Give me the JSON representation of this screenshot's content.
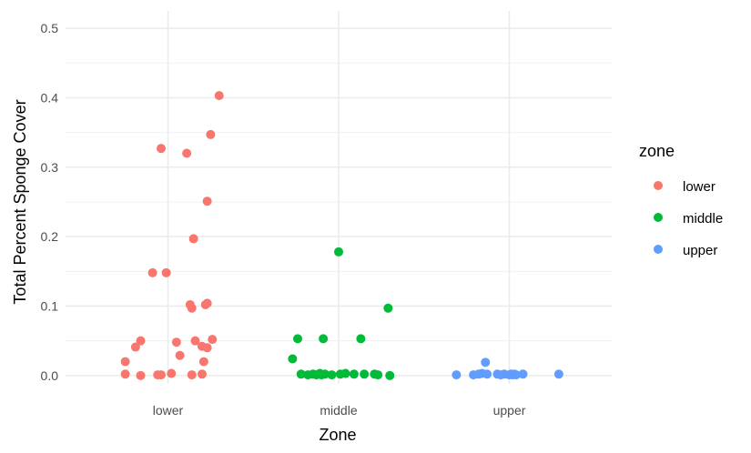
{
  "chart_data": {
    "type": "scatter",
    "xlabel": "Zone",
    "ylabel": "Total Percent Sponge Cover",
    "categories": [
      "lower",
      "middle",
      "upper"
    ],
    "y_ticks": [
      "0.0",
      "0.1",
      "0.2",
      "0.3",
      "0.4",
      "0.5"
    ],
    "ylim": [
      -0.012,
      0.525
    ],
    "grid": true,
    "legend": {
      "title": "zone",
      "position": "right",
      "entries": [
        "lower",
        "middle",
        "upper"
      ]
    },
    "colors": {
      "lower": "#F8766D",
      "middle": "#00BA38",
      "upper": "#619CFF"
    },
    "series": [
      {
        "name": "lower",
        "points": [
          {
            "x": 0.75,
            "y": 0.02
          },
          {
            "x": 0.75,
            "y": 0.002
          },
          {
            "x": 0.81,
            "y": 0.041
          },
          {
            "x": 0.84,
            "y": 0.05
          },
          {
            "x": 0.84,
            "y": 0.0
          },
          {
            "x": 0.91,
            "y": 0.148
          },
          {
            "x": 0.94,
            "y": 0.001
          },
          {
            "x": 0.96,
            "y": 0.327
          },
          {
            "x": 0.96,
            "y": 0.001
          },
          {
            "x": 0.99,
            "y": 0.148
          },
          {
            "x": 1.02,
            "y": 0.003
          },
          {
            "x": 1.05,
            "y": 0.048
          },
          {
            "x": 1.07,
            "y": 0.029
          },
          {
            "x": 1.11,
            "y": 0.32
          },
          {
            "x": 1.13,
            "y": 0.102
          },
          {
            "x": 1.14,
            "y": 0.097
          },
          {
            "x": 1.15,
            "y": 0.197
          },
          {
            "x": 1.14,
            "y": 0.001
          },
          {
            "x": 1.16,
            "y": 0.05
          },
          {
            "x": 1.2,
            "y": 0.042
          },
          {
            "x": 1.21,
            "y": 0.02
          },
          {
            "x": 1.2,
            "y": 0.002
          },
          {
            "x": 1.22,
            "y": 0.102
          },
          {
            "x": 1.23,
            "y": 0.104
          },
          {
            "x": 1.23,
            "y": 0.251
          },
          {
            "x": 1.23,
            "y": 0.04
          },
          {
            "x": 1.25,
            "y": 0.347
          },
          {
            "x": 1.26,
            "y": 0.052
          },
          {
            "x": 1.3,
            "y": 0.403
          }
        ]
      },
      {
        "name": "middle",
        "points": [
          {
            "x": 1.73,
            "y": 0.024
          },
          {
            "x": 1.76,
            "y": 0.053
          },
          {
            "x": 1.78,
            "y": 0.002
          },
          {
            "x": 1.82,
            "y": 0.001
          },
          {
            "x": 1.85,
            "y": 0.002
          },
          {
            "x": 1.87,
            "y": 0.001
          },
          {
            "x": 1.89,
            "y": 0.003
          },
          {
            "x": 1.9,
            "y": 0.001
          },
          {
            "x": 1.91,
            "y": 0.053
          },
          {
            "x": 1.92,
            "y": 0.002
          },
          {
            "x": 1.96,
            "y": 0.001
          },
          {
            "x": 2.0,
            "y": 0.178
          },
          {
            "x": 2.01,
            "y": 0.002
          },
          {
            "x": 2.04,
            "y": 0.003
          },
          {
            "x": 2.09,
            "y": 0.002
          },
          {
            "x": 2.13,
            "y": 0.053
          },
          {
            "x": 2.15,
            "y": 0.002
          },
          {
            "x": 2.21,
            "y": 0.002
          },
          {
            "x": 2.23,
            "y": 0.001
          },
          {
            "x": 2.29,
            "y": 0.097
          },
          {
            "x": 2.3,
            "y": 0.0
          }
        ]
      },
      {
        "name": "upper",
        "points": [
          {
            "x": 2.69,
            "y": 0.001
          },
          {
            "x": 2.79,
            "y": 0.001
          },
          {
            "x": 2.82,
            "y": 0.002
          },
          {
            "x": 2.84,
            "y": 0.003
          },
          {
            "x": 2.86,
            "y": 0.019
          },
          {
            "x": 2.87,
            "y": 0.002
          },
          {
            "x": 2.93,
            "y": 0.002
          },
          {
            "x": 2.95,
            "y": 0.001
          },
          {
            "x": 2.97,
            "y": 0.002
          },
          {
            "x": 3.0,
            "y": 0.001
          },
          {
            "x": 3.01,
            "y": 0.002
          },
          {
            "x": 3.02,
            "y": 0.001
          },
          {
            "x": 3.03,
            "y": 0.002
          },
          {
            "x": 3.04,
            "y": 0.001
          },
          {
            "x": 3.08,
            "y": 0.002
          },
          {
            "x": 3.29,
            "y": 0.002
          }
        ]
      }
    ]
  }
}
